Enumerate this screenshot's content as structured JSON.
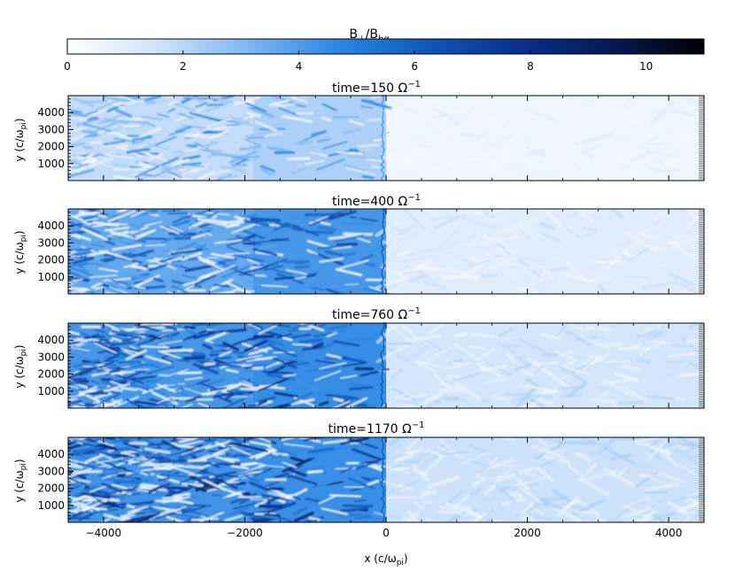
{
  "colorbar": {
    "title_main": "B",
    "title_sub1": "⊥",
    "title_mid": "/B",
    "title_sub2": "bg",
    "range": [
      0,
      11
    ],
    "ticks": [
      "0",
      "2",
      "4",
      "6",
      "8",
      "10"
    ],
    "tick_values": [
      0,
      2,
      4,
      6,
      8,
      10
    ],
    "colormap": [
      "#ffffff",
      "#cfe3fb",
      "#7cb6f2",
      "#2a86e2",
      "#0f56b8",
      "#082f8a",
      "#051a55",
      "#000000"
    ]
  },
  "chart_data": [
    {
      "type": "heatmap",
      "title_prefix": "time=150 ",
      "title_unit": "Ω",
      "title_exp": "−1",
      "xlim": [
        -4500,
        4500
      ],
      "ylim": [
        0,
        5000
      ],
      "yticks": [
        "1000",
        "2000",
        "3000",
        "4000"
      ],
      "ytick_values": [
        1000,
        2000,
        3000,
        4000
      ],
      "ylabel_main": "y (c/ω",
      "ylabel_sub": "pi",
      "ylabel_end": ")",
      "shock_x": 0,
      "upstream_level": 0.5,
      "downstream_level": 1.8,
      "near_shock_level": 2.4,
      "upstream_peak": 1.2,
      "downstream_peak": 5
    },
    {
      "type": "heatmap",
      "title_prefix": "time=400 ",
      "title_unit": "Ω",
      "title_exp": "−1",
      "xlim": [
        -4500,
        4500
      ],
      "ylim": [
        0,
        5000
      ],
      "yticks": [
        "1000",
        "2000",
        "3000",
        "4000"
      ],
      "ytick_values": [
        1000,
        2000,
        3000,
        4000
      ],
      "ylabel_main": "y (c/ω",
      "ylabel_sub": "pi",
      "ylabel_end": ")",
      "shock_x": 0,
      "upstream_level": 1,
      "downstream_level": 3.6,
      "near_shock_level": 4.4,
      "upstream_peak": 2,
      "downstream_peak": 7.5
    },
    {
      "type": "heatmap",
      "title_prefix": "time=760 ",
      "title_unit": "Ω",
      "title_exp": "−1",
      "xlim": [
        -4500,
        4500
      ],
      "ylim": [
        0,
        5000
      ],
      "yticks": [
        "1000",
        "2000",
        "3000",
        "4000"
      ],
      "ytick_values": [
        1000,
        2000,
        3000,
        4000
      ],
      "ylabel_main": "y (c/ω",
      "ylabel_sub": "pi",
      "ylabel_end": ")",
      "shock_x": 0,
      "upstream_level": 1.4,
      "downstream_level": 4.2,
      "near_shock_level": 4.6,
      "upstream_peak": 2.4,
      "downstream_peak": 9
    },
    {
      "type": "heatmap",
      "title_prefix": "time=1170 ",
      "title_unit": "Ω",
      "title_exp": "−1",
      "xlim": [
        -4500,
        4500
      ],
      "ylim": [
        0,
        5000
      ],
      "yticks": [
        "1000",
        "2000",
        "3000",
        "4000"
      ],
      "ytick_values": [
        1000,
        2000,
        3000,
        4000
      ],
      "ylabel_main": "y (c/ω",
      "ylabel_sub": "pi",
      "ylabel_end": ")",
      "xticks": [
        "−4000",
        "−2000",
        "0",
        "2000",
        "4000"
      ],
      "xtick_values": [
        -4000,
        -2000,
        0,
        2000,
        4000
      ],
      "xlabel_main": "x (c/ω",
      "xlabel_sub": "pi",
      "xlabel_end": ")",
      "shock_x": 0,
      "upstream_level": 1.6,
      "downstream_level": 4.3,
      "near_shock_level": 4.5,
      "upstream_peak": 2.6,
      "downstream_peak": 9.5
    }
  ]
}
